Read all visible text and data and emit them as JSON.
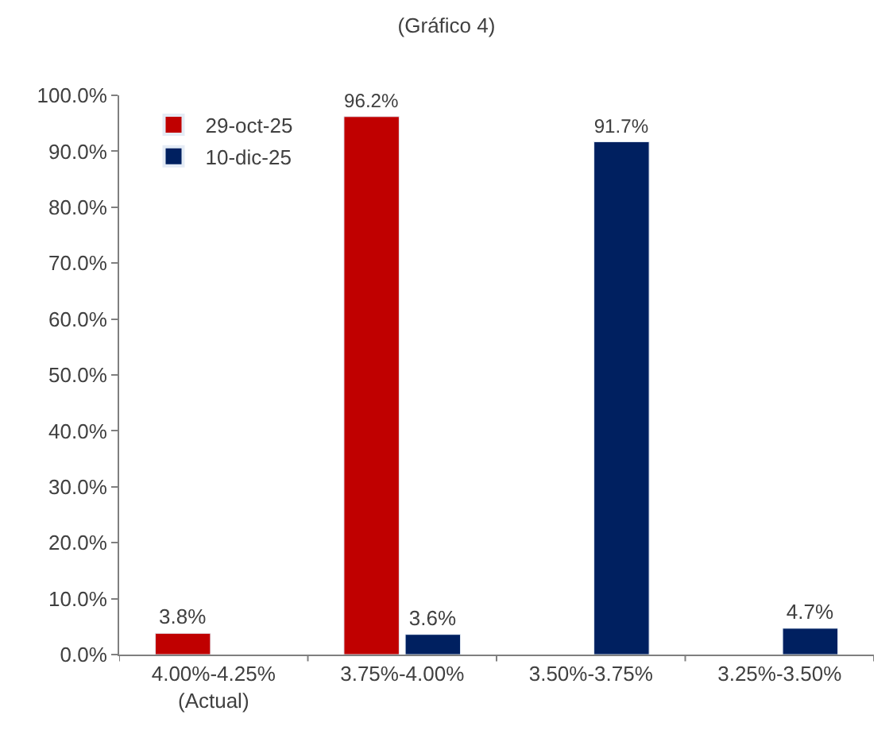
{
  "chart_data": {
    "type": "bar",
    "title": "(Gráfico 4)",
    "categories": [
      "4.00%-4.25%\n(Actual)",
      "3.75%-4.00%",
      "3.50%-3.75%",
      "3.25%-3.50%"
    ],
    "series": [
      {
        "name": "29-oct-25",
        "color": "#c00000",
        "values": [
          3.8,
          96.2,
          null,
          null
        ],
        "value_labels": [
          "3.8%",
          "96.2%",
          null,
          null
        ]
      },
      {
        "name": "10-dic-25",
        "color": "#002060",
        "values": [
          null,
          3.6,
          91.7,
          4.7
        ],
        "value_labels": [
          null,
          "3.6%",
          "91.7%",
          "4.7%"
        ]
      }
    ],
    "ylim": [
      0,
      100
    ],
    "yticks": [
      {
        "value": 0,
        "label": "0.0%"
      },
      {
        "value": 10,
        "label": "10.0%"
      },
      {
        "value": 20,
        "label": "20.0%"
      },
      {
        "value": 30,
        "label": "30.0%"
      },
      {
        "value": 40,
        "label": "40.0%"
      },
      {
        "value": 50,
        "label": "50.0%"
      },
      {
        "value": 60,
        "label": "60.0%"
      },
      {
        "value": 70,
        "label": "70.0%"
      },
      {
        "value": 80,
        "label": "80.0%"
      },
      {
        "value": 90,
        "label": "90.0%"
      },
      {
        "value": 100,
        "label": "100.0%"
      }
    ],
    "legend": "top left"
  }
}
